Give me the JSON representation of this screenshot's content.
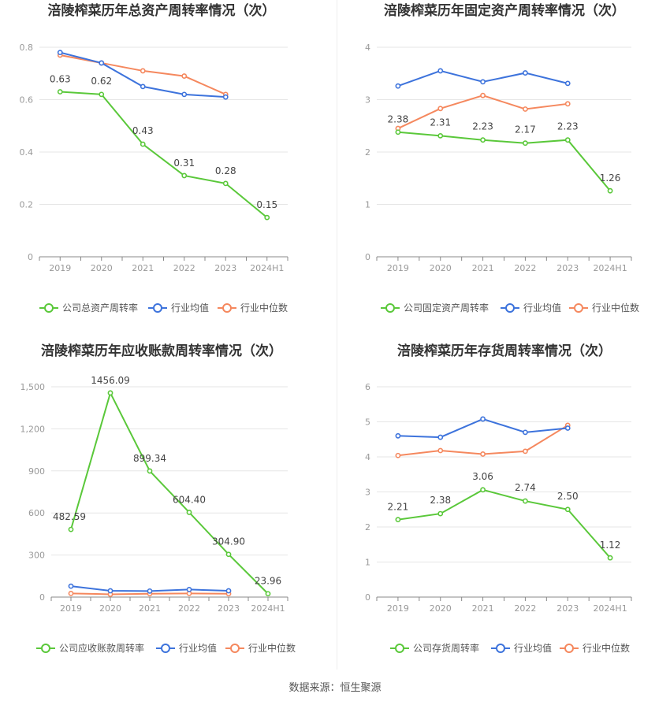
{
  "colors": {
    "company": "#5ac83a",
    "avg": "#3d73dc",
    "median": "#f5885e",
    "grid": "#e6e6e6",
    "axis": "#999999",
    "title": "#333333"
  },
  "source": "数据来源：恒生聚源",
  "chart_data": [
    {
      "type": "line",
      "title": "涪陵榨菜历年总资产周转率情况（次）",
      "categories": [
        "2019",
        "2020",
        "2021",
        "2022",
        "2023",
        "2024H1"
      ],
      "yticks": [
        "0",
        "0.2",
        "0.4",
        "0.6",
        "0.8"
      ],
      "ylim": [
        0,
        0.8
      ],
      "series": [
        {
          "name": "公司总资产周转率",
          "role": "company",
          "values": [
            0.63,
            0.62,
            0.43,
            0.31,
            0.28,
            0.15
          ],
          "labels": [
            "0.63",
            "0.62",
            "0.43",
            "0.31",
            "0.28",
            "0.15"
          ]
        },
        {
          "name": "行业均值",
          "role": "avg",
          "values": [
            0.78,
            0.74,
            0.65,
            0.62,
            0.61,
            null
          ]
        },
        {
          "name": "行业中位数",
          "role": "median",
          "values": [
            0.77,
            0.74,
            0.71,
            0.69,
            0.62,
            null
          ]
        }
      ]
    },
    {
      "type": "line",
      "title": "涪陵榨菜历年固定资产周转率情况（次）",
      "categories": [
        "2019",
        "2020",
        "2021",
        "2022",
        "2023",
        "2024H1"
      ],
      "yticks": [
        "0",
        "1",
        "2",
        "3",
        "4"
      ],
      "ylim": [
        0,
        4
      ],
      "series": [
        {
          "name": "公司固定资产周转率",
          "role": "company",
          "values": [
            2.38,
            2.31,
            2.23,
            2.17,
            2.23,
            1.26
          ],
          "labels": [
            "2.38",
            "2.31",
            "2.23",
            "2.17",
            "2.23",
            "1.26"
          ]
        },
        {
          "name": "行业均值",
          "role": "avg",
          "values": [
            3.26,
            3.55,
            3.34,
            3.51,
            3.31,
            null
          ]
        },
        {
          "name": "行业中位数",
          "role": "median",
          "values": [
            2.45,
            2.83,
            3.08,
            2.82,
            2.92,
            null
          ]
        }
      ]
    },
    {
      "type": "line",
      "title": "涪陵榨菜历年应收账款周转率情况（次）",
      "categories": [
        "2019",
        "2020",
        "2021",
        "2022",
        "2023",
        "2024H1"
      ],
      "yticks": [
        "0",
        "300",
        "600",
        "900",
        "1,200",
        "1,500"
      ],
      "ylim": [
        0,
        1500
      ],
      "series": [
        {
          "name": "公司应收账款周转率",
          "role": "company",
          "values": [
            482.59,
            1456.09,
            899.34,
            604.4,
            304.9,
            23.96
          ],
          "labels": [
            "482.59",
            "1456.09",
            "899.34",
            "604.40",
            "304.90",
            "23.96"
          ]
        },
        {
          "name": "行业均值",
          "role": "avg",
          "values": [
            78,
            45,
            43,
            54,
            45,
            null
          ]
        },
        {
          "name": "行业中位数",
          "role": "median",
          "values": [
            26,
            20,
            24,
            26,
            24,
            null
          ]
        }
      ]
    },
    {
      "type": "line",
      "title": "涪陵榨菜历年存货周转率情况（次）",
      "categories": [
        "2019",
        "2020",
        "2021",
        "2022",
        "2023",
        "2024H1"
      ],
      "yticks": [
        "0",
        "1",
        "2",
        "3",
        "4",
        "5",
        "6"
      ],
      "ylim": [
        0,
        6
      ],
      "series": [
        {
          "name": "公司存货周转率",
          "role": "company",
          "values": [
            2.21,
            2.38,
            3.06,
            2.74,
            2.5,
            1.12
          ],
          "labels": [
            "2.21",
            "2.38",
            "3.06",
            "2.74",
            "2.50",
            "1.12"
          ]
        },
        {
          "name": "行业均值",
          "role": "avg",
          "values": [
            4.6,
            4.56,
            5.08,
            4.7,
            4.82,
            null
          ]
        },
        {
          "name": "行业中位数",
          "role": "median",
          "values": [
            4.04,
            4.18,
            4.08,
            4.16,
            4.9,
            null
          ]
        }
      ]
    }
  ]
}
